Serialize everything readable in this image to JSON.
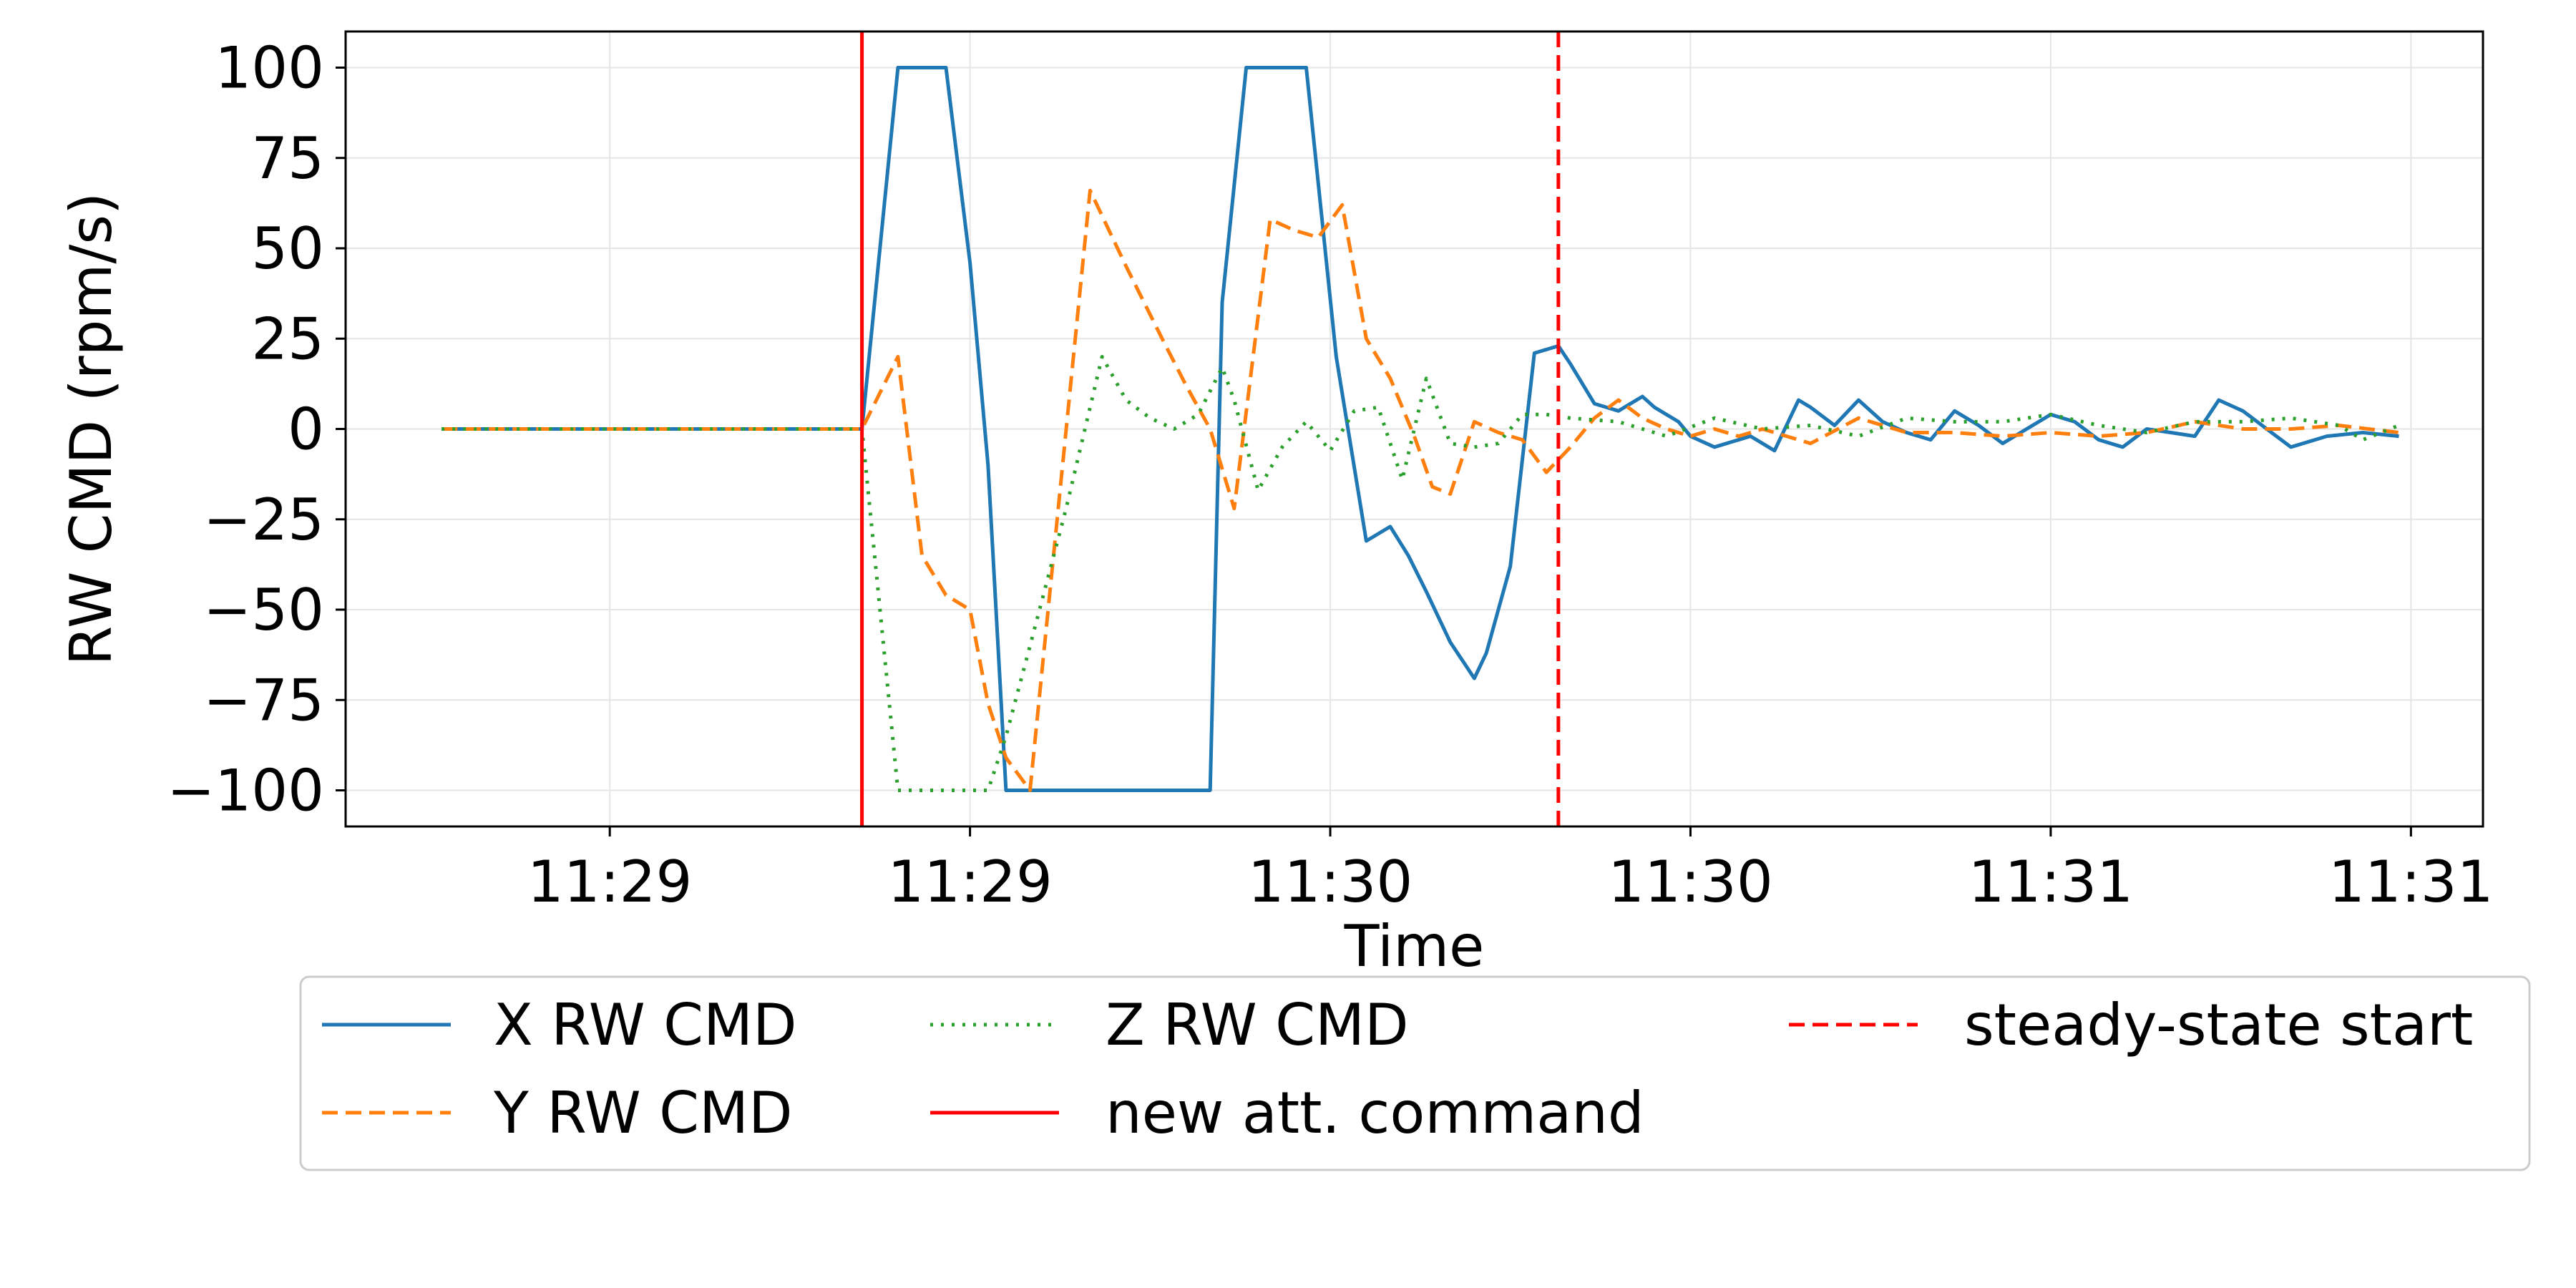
{
  "chart_data": {
    "type": "line",
    "title": "",
    "xlabel": "Time",
    "ylabel": "RW CMD (rpm/s)",
    "x_tick_labels": [
      "11:29",
      "11:29",
      "11:30",
      "11:30",
      "11:31",
      "11:31"
    ],
    "x_ticks_seconds": [
      0,
      30,
      60,
      90,
      120,
      150
    ],
    "xlim_seconds": [
      -22,
      156
    ],
    "y_ticks": [
      -100,
      -75,
      -50,
      -25,
      0,
      25,
      50,
      75,
      100
    ],
    "ylim": [
      -110,
      110
    ],
    "grid": true,
    "legend_placement": "below-plot",
    "series": [
      {
        "name": "X RW CMD",
        "color": "#1f77b4",
        "style": "solid",
        "x": [
          -14,
          21,
          24,
          28,
          30,
          31.5,
          33,
          35,
          40,
          45,
          50,
          51,
          53,
          54,
          58,
          59,
          60.5,
          63,
          65,
          66.5,
          68,
          70,
          72,
          73,
          75,
          77,
          79,
          80,
          82,
          84,
          86,
          87,
          89,
          90,
          92,
          93,
          95,
          97,
          99,
          100,
          102,
          104,
          106,
          108,
          110,
          112,
          114,
          116,
          118,
          120,
          122,
          124,
          126,
          128,
          130,
          132,
          134,
          136,
          138,
          140,
          143,
          146,
          149
        ],
        "y": [
          0,
          0,
          100,
          100,
          46,
          -10,
          -100,
          -100,
          -100,
          -100,
          -100,
          35,
          100,
          100,
          100,
          68,
          20,
          -31,
          -27,
          -35,
          -45,
          -59,
          -69,
          -62,
          -38,
          21,
          23,
          18,
          7,
          5,
          9,
          6,
          2,
          -2,
          -5,
          -4,
          -2,
          -6,
          8,
          6,
          1,
          8,
          2,
          -1,
          -3,
          5,
          1,
          -4,
          0,
          4,
          2,
          -3,
          -5,
          0,
          -1,
          -2,
          8,
          5,
          0,
          -5,
          -2,
          -1,
          -2
        ]
      },
      {
        "name": "Y RW CMD",
        "color": "#ff7f0e",
        "style": "dashed",
        "x": [
          -14,
          21,
          24,
          26,
          28,
          30,
          31.5,
          33,
          35,
          40,
          43,
          46,
          48,
          50,
          52,
          55,
          57,
          59,
          61,
          63,
          65,
          67,
          68.5,
          70,
          72,
          74,
          76,
          78,
          80,
          82,
          84,
          86,
          88,
          90,
          92,
          94,
          96,
          98,
          100,
          104,
          108,
          112,
          116,
          120,
          124,
          128,
          132,
          136,
          140,
          144,
          149
        ],
        "y": [
          0,
          0,
          20,
          -35,
          -46,
          -50,
          -76,
          -91,
          -100,
          66,
          45,
          25,
          12,
          0,
          -22,
          58,
          55,
          53,
          62,
          25,
          14,
          -2,
          -16,
          -18,
          2,
          -1,
          -3,
          -12,
          -5,
          3,
          8,
          3,
          0,
          -2,
          0,
          -2,
          0,
          -2,
          -4,
          3,
          -1,
          -1,
          -2,
          -1,
          -2,
          -1,
          2,
          0,
          0,
          1,
          -1
        ]
      },
      {
        "name": "Z RW CMD",
        "color": "#2ca02c",
        "style": "dotted",
        "x": [
          -14,
          21,
          22.5,
          24,
          28,
          31.5,
          33,
          35,
          38,
          41,
          43,
          45,
          47,
          49,
          51,
          52,
          54,
          56,
          58,
          60,
          62,
          64,
          66,
          68,
          70,
          72,
          74,
          76,
          78,
          80,
          84,
          88,
          92,
          96,
          100,
          104,
          108,
          112,
          116,
          120,
          124,
          128,
          132,
          136,
          140,
          144,
          146,
          149
        ],
        "y": [
          0,
          0,
          -50,
          -100,
          -100,
          -100,
          -85,
          -60,
          -22,
          20,
          8,
          3,
          0,
          4,
          17,
          8,
          -17,
          -5,
          2,
          -6,
          5,
          6,
          -14,
          14,
          -4,
          -5,
          -4,
          4,
          4,
          3,
          2,
          -2,
          3,
          0,
          1,
          -2,
          3,
          2,
          2,
          4,
          1,
          -1,
          2,
          2,
          3,
          1,
          -3,
          1
        ]
      },
      {
        "name": "new att. command",
        "color": "#ff0000",
        "style": "solid-vline",
        "x_value_seconds": 21
      },
      {
        "name": "steady-state start",
        "color": "#ff0000",
        "style": "dashed-vline",
        "x_value_seconds": 79
      }
    ]
  },
  "legend": {
    "items": [
      {
        "label": "X RW CMD",
        "color": "#1f77b4",
        "dash": "solid"
      },
      {
        "label": "Y RW CMD",
        "color": "#ff7f0e",
        "dash": "dashed"
      },
      {
        "label": "Z RW CMD",
        "color": "#2ca02c",
        "dash": "dotted"
      },
      {
        "label": "new att. command",
        "color": "#ff0000",
        "dash": "solid"
      },
      {
        "label": "steady-state start",
        "color": "#ff0000",
        "dash": "dashed"
      }
    ]
  }
}
